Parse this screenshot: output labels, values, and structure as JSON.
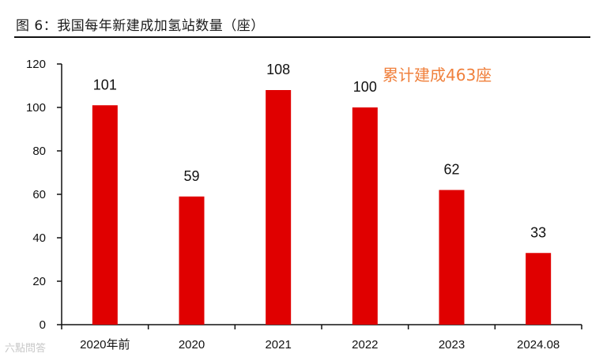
{
  "figure": {
    "title": "图 6：我国每年新建成加氢站数量（座）"
  },
  "watermark": {
    "text": "六點問答"
  },
  "colors": {
    "bar": "#e00000",
    "annotation": "#f0803c",
    "axis": "#111111"
  },
  "chart_data": {
    "type": "bar",
    "title": "我国每年新建成加氢站数量（座）",
    "xlabel": "",
    "ylabel": "",
    "categories": [
      "2020年前",
      "2020",
      "2021",
      "2022",
      "2023",
      "2024.08"
    ],
    "values": [
      101,
      59,
      108,
      100,
      62,
      33
    ],
    "ylim": [
      0,
      120
    ],
    "yticks": [
      0,
      20,
      40,
      60,
      80,
      100,
      120
    ],
    "grid": false,
    "legend": "none",
    "annotation": "累计建成463座"
  }
}
